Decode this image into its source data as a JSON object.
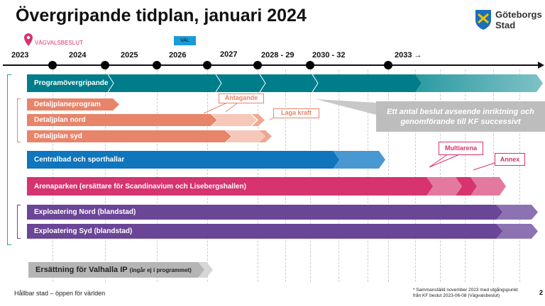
{
  "title": "Övergripande tidplan, januari 2024",
  "logo": {
    "text_line1": "Göteborgs",
    "text_line2": "Stad"
  },
  "milestones": {
    "vagvalsbeslut": "VÄGVALSBESLUT",
    "val": "VAL"
  },
  "years": [
    "2023",
    "2024",
    "2025",
    "2026",
    "2027",
    "2028 - 29",
    "2030 - 32",
    "2033 →"
  ],
  "bars": {
    "program": "Programövergripande",
    "dpp": "Detaljplaneprogram",
    "dpn": "Detaljplan nord",
    "dps": "Detaljplan syd",
    "central": "Centralbad och sporthallar",
    "arena": "Arenaparken (ersättare för Scandinavium och Lisebergshallen)",
    "expn": "Exploatering Nord (blandstad)",
    "exps": "Exploatering Syd (blandstad)",
    "valhalla": "Ersättning för Valhalla IP",
    "valhalla_note": "(ingår ej i programmet)"
  },
  "callouts": {
    "antagande": "Antagande",
    "laga_kraft": "Laga kraft",
    "kf": "Ett antal beslut avseende inriktning och genomförande till KF successivt",
    "multiarena": "Multiarena",
    "annex": "Annex"
  },
  "footer": {
    "left": "Hållbar stad – öppen för världen",
    "note1": "* Sammanställd november 2023 med utgångspunkt",
    "note2": "från KF beslut 2023-06-08 (Vägvalsbeslut)",
    "page": "2"
  },
  "colors": {
    "teal": "#007d8a",
    "salmon": "#e8846a",
    "blue": "#0f75bc",
    "pink": "#d6336f",
    "purple": "#6b4596",
    "gray": "#b5b5b5"
  }
}
